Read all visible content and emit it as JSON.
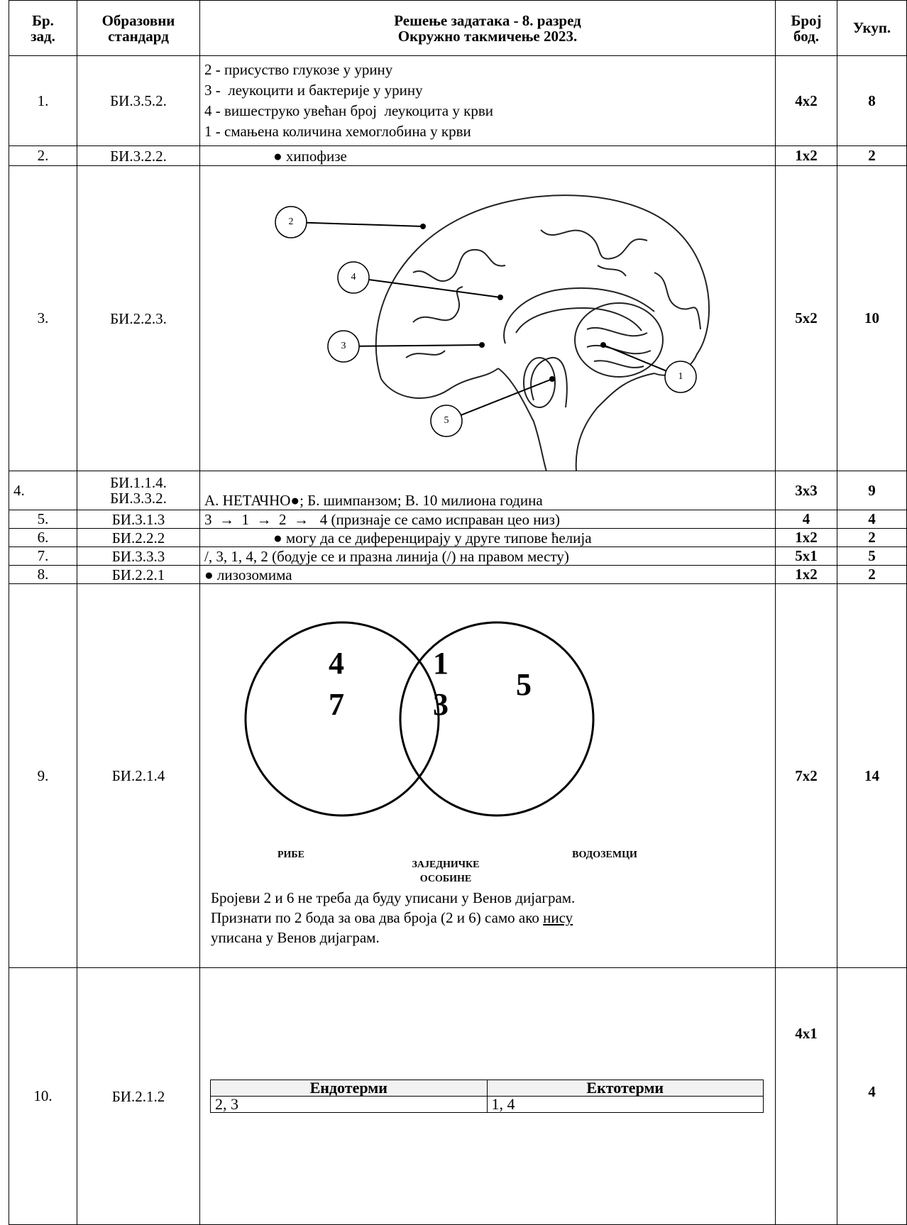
{
  "header": {
    "number": [
      "Бр.",
      "зад."
    ],
    "standard": [
      "Образовни",
      "стандард"
    ],
    "title": [
      "Решење задатака - 8. разред",
      "Окружно такмичење 2023."
    ],
    "points": [
      "Број",
      "бод."
    ],
    "total": "Укуп."
  },
  "rows": [
    {
      "number": "1.",
      "standard": [
        "БИ.3.5.2."
      ],
      "content": [
        "2 - присуство глукозе у урину",
        "3 -  леукоцити и бактерије у урину",
        "4 - вишеструко увећан број  леукоцита у крви",
        "1 - смањена количина хемоглобина у крви"
      ],
      "points": "4x2",
      "total": "8"
    },
    {
      "number": "2.",
      "standard": [
        "БИ.3.2.2."
      ],
      "content": [
        "● хипофизе"
      ],
      "points": "1x2",
      "total": "2"
    },
    {
      "number": "3.",
      "standard": [
        "БИ.2.2.3."
      ],
      "brain_labels": [
        "1",
        "2",
        "3",
        "4",
        "5"
      ],
      "points": "5x2",
      "total": "10"
    },
    {
      "number": "4.",
      "standard": [
        "БИ.1.1.4.",
        "БИ.3.3.2."
      ],
      "content": [
        "А. НЕТАЧНО●; Б. шимпанзом; В. 10 милиона година"
      ],
      "points": "3x3",
      "total": "9"
    },
    {
      "number": "5.",
      "standard": [
        "БИ.3.1.3"
      ],
      "content": [
        "3  →  1  →  2  →   4 (признаје се само исправан цео низ)"
      ],
      "points": "4",
      "total": "4"
    },
    {
      "number": "6.",
      "standard": [
        "БИ.2.2.2"
      ],
      "content": [
        "● могу да се диференцирају у друге типове ћелија"
      ],
      "points": "1x2",
      "total": "2"
    },
    {
      "number": "7.",
      "standard": [
        "БИ.3.3.3"
      ],
      "content": [
        "/, 3, 1, 4, 2 (бодује се и празна линија (/) на правом месту)"
      ],
      "points": "5x1",
      "total": "5"
    },
    {
      "number": "8.",
      "standard": [
        "БИ.2.2.1"
      ],
      "content": [
        "● лизозомима"
      ],
      "points": "1x2",
      "total": "2"
    },
    {
      "number": "9.",
      "standard": [
        "БИ.2.1.4"
      ],
      "venn": {
        "left": [
          "4",
          "7"
        ],
        "middle": [
          "1",
          "3"
        ],
        "right": [
          "5"
        ],
        "left_label": "РИБЕ",
        "middle_label": [
          "ЗАЈЕДНИЧКЕ",
          "ОСОБИНЕ"
        ],
        "right_label": "ВОДОЗЕМЦИ"
      },
      "note": {
        "line1": "Бројеви 2 и 6 не треба да буду уписани у Венов дијаграм.",
        "line2": "Признати по 2 бода за ова два броја (2 и 6) само ако ",
        "line2_underlined": "нису",
        "line3": "уписана у Венов дијаграм."
      },
      "points": "7x2",
      "total": "14"
    },
    {
      "number": "10.",
      "standard": [
        "БИ.2.1.2"
      ],
      "table": {
        "headers": [
          "Ендотерми",
          "Ектотерми"
        ],
        "cells": [
          "2, 3",
          "1, 4"
        ]
      },
      "points": "4x1",
      "total": "4"
    }
  ]
}
